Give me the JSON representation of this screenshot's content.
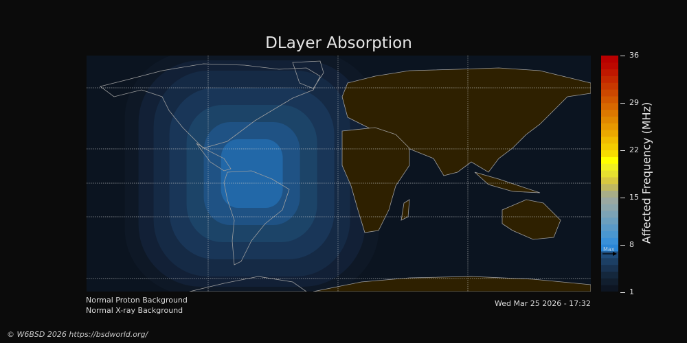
{
  "title": "DLayer Absorption",
  "colorbar": {
    "label": "Affected Frequency (MHz)",
    "min": 1,
    "max": 36,
    "ticks": [
      "36",
      "29",
      "22",
      "15",
      "8",
      "1"
    ],
    "max_marker_label": "Max",
    "max_marker_value": 6.5,
    "colors": [
      "#0d1522",
      "#111e2e",
      "#14273c",
      "#183250",
      "#1c3f64",
      "#1f4c7a",
      "#2a86d6",
      "#3990d8",
      "#4a97d0",
      "#5a9ac8",
      "#6b9fbf",
      "#7ca3b6",
      "#8ca6ac",
      "#9aa8a2",
      "#a8ad88",
      "#c0b860",
      "#d8c840",
      "#e6e030",
      "#f0f020",
      "#ffff00",
      "#f6dc00",
      "#f3cc00",
      "#f0bc00",
      "#eaa800",
      "#e69800",
      "#e08800",
      "#dc7800",
      "#d86800",
      "#d25800",
      "#cc4800",
      "#c83800",
      "#c42800",
      "#c01800",
      "#bc0800",
      "#b80000"
    ]
  },
  "map": {
    "ocean_color": "#0b1420",
    "day_land_color": "#2e2000",
    "coast_color": "#a0a0a0",
    "absorption_center": {
      "lon": -62,
      "lat": 0
    }
  },
  "footer": {
    "proton_status": "Normal Proton Background",
    "xray_status": "Normal X-ray Background",
    "timestamp": "Wed Mar 25 2026 - 17:32",
    "copyright": "© W6BSD 2026 https://bsdworld.org/"
  }
}
